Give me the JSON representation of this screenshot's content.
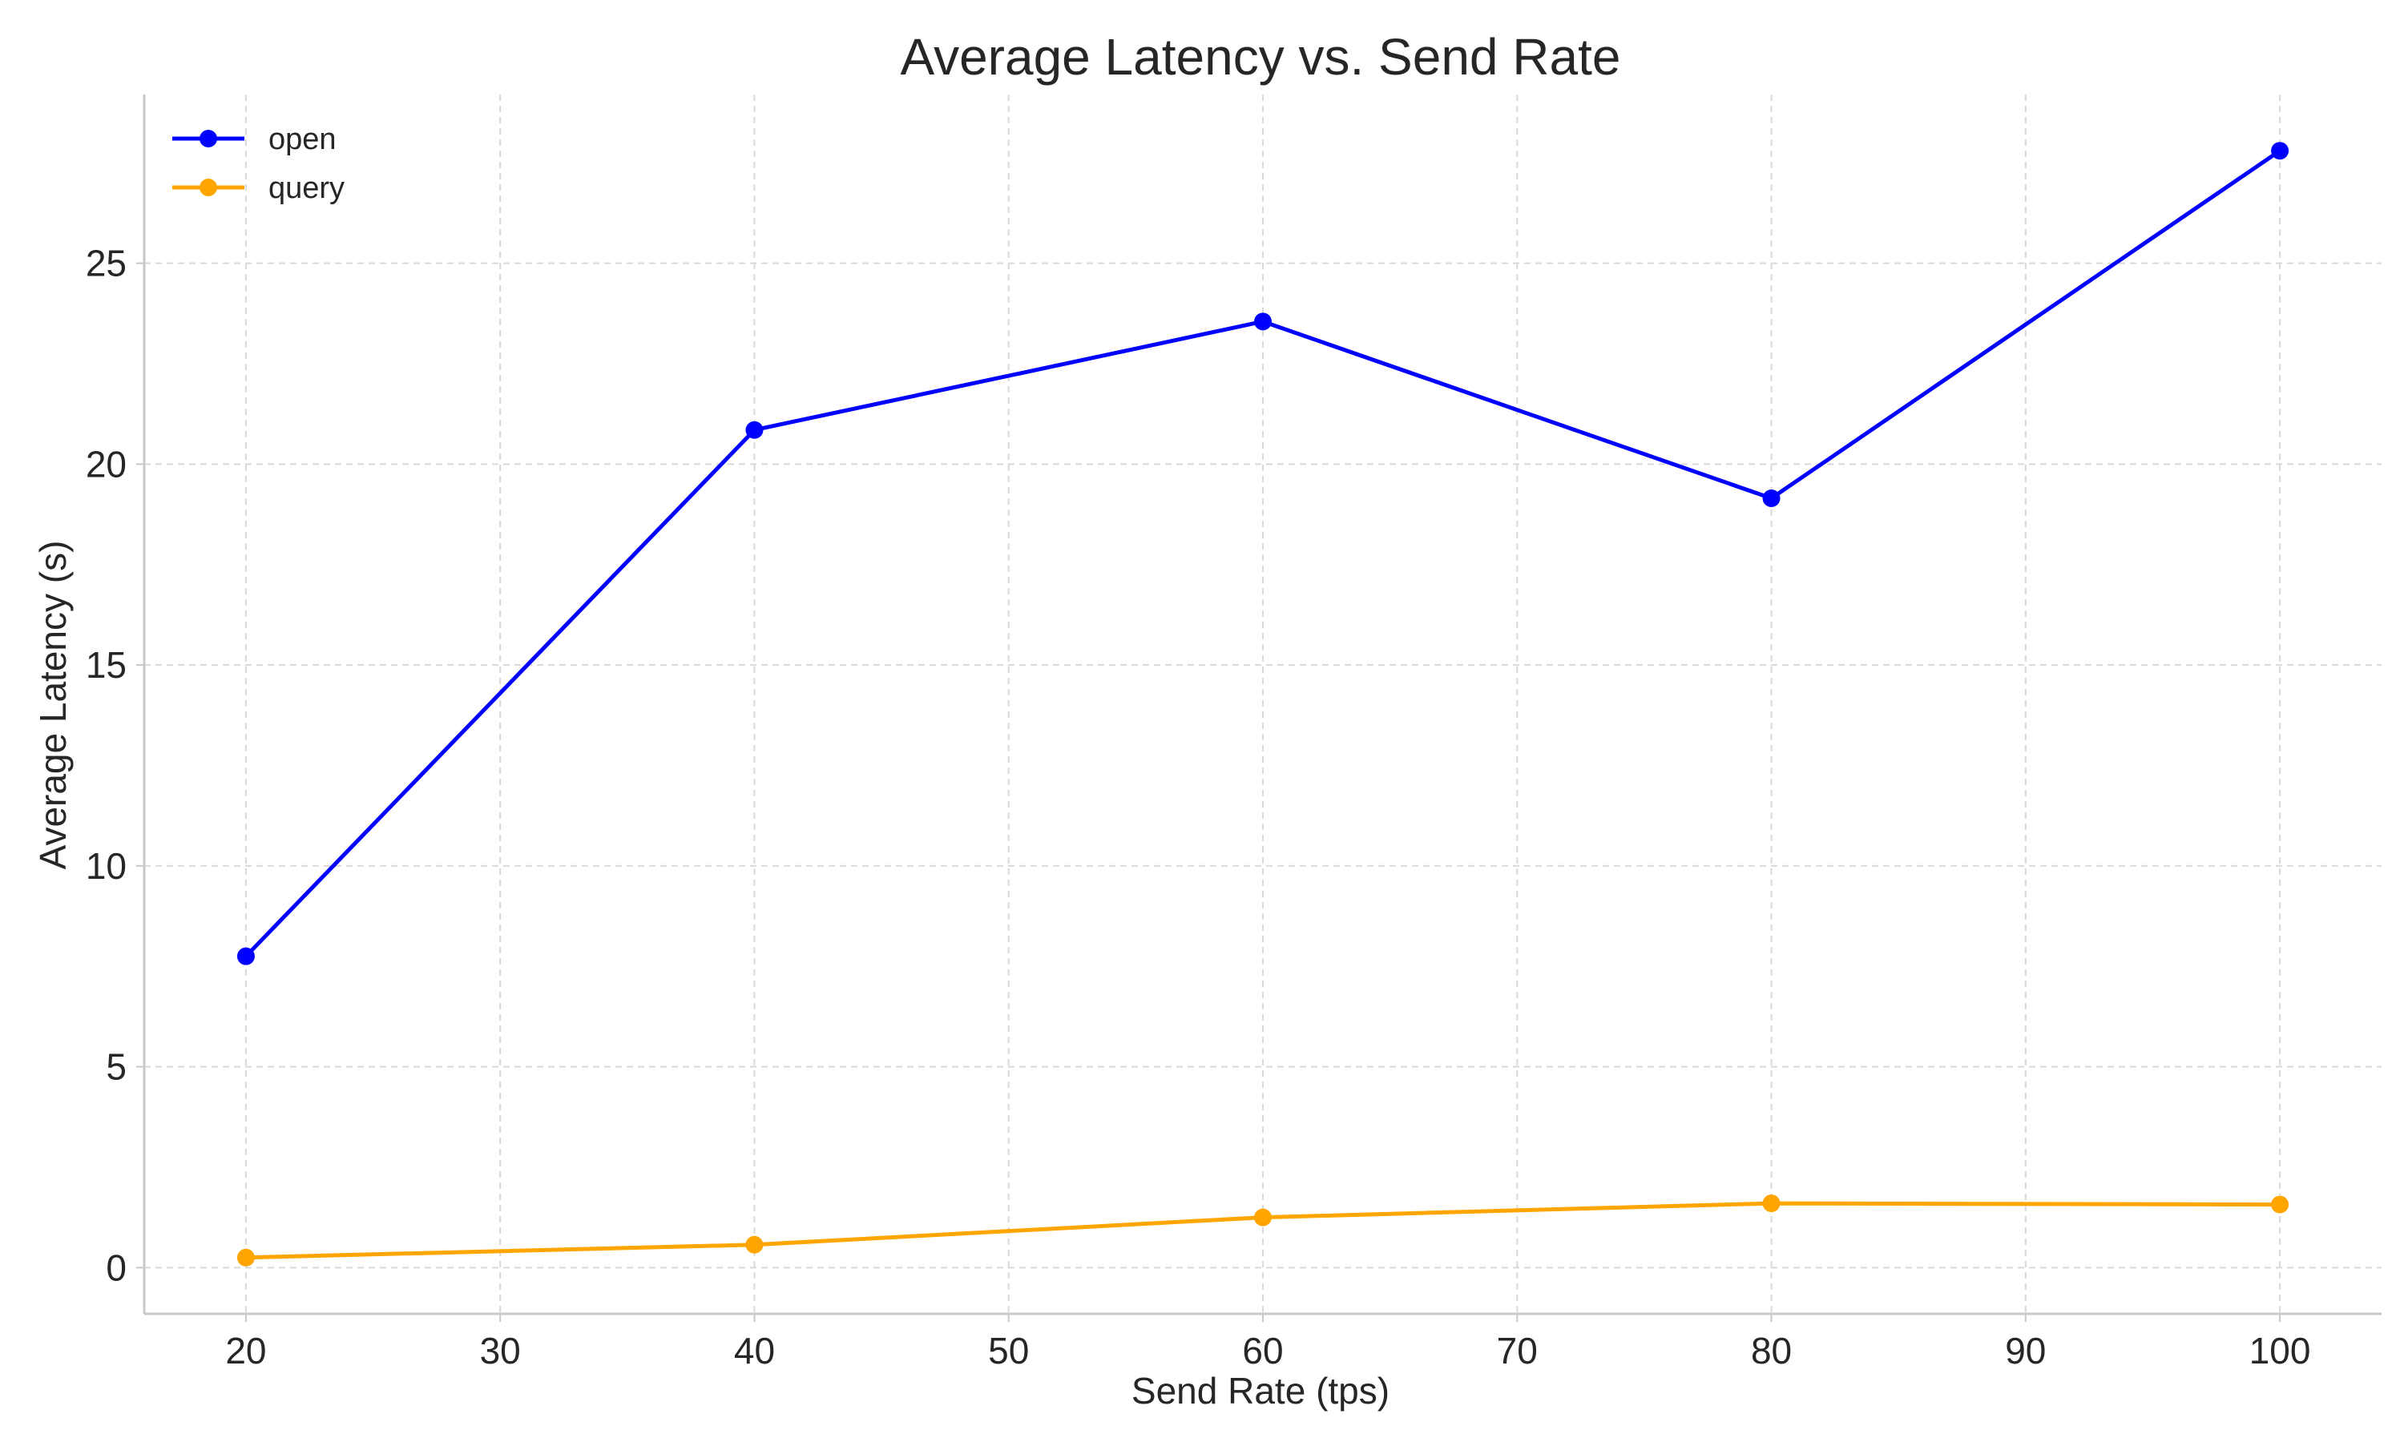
{
  "chart_data": {
    "type": "line",
    "title": "Average Latency vs. Send Rate",
    "xlabel": "Send Rate (tps)",
    "ylabel": "Average Latency (s)",
    "x": [
      20,
      40,
      60,
      80,
      100
    ],
    "xlim": [
      16,
      104
    ],
    "ylim": [
      -1.15,
      29.2
    ],
    "xticks": [
      20,
      30,
      40,
      50,
      60,
      70,
      80,
      90,
      100
    ],
    "yticks": [
      0,
      5,
      10,
      15,
      20,
      25
    ],
    "grid": true,
    "legend_position": "top-left",
    "series": [
      {
        "name": "open",
        "color": "#0000ff",
        "values": [
          7.75,
          20.85,
          23.55,
          19.15,
          27.8
        ]
      },
      {
        "name": "query",
        "color": "#ffa500",
        "values": [
          0.25,
          0.57,
          1.25,
          1.6,
          1.57
        ]
      }
    ]
  }
}
